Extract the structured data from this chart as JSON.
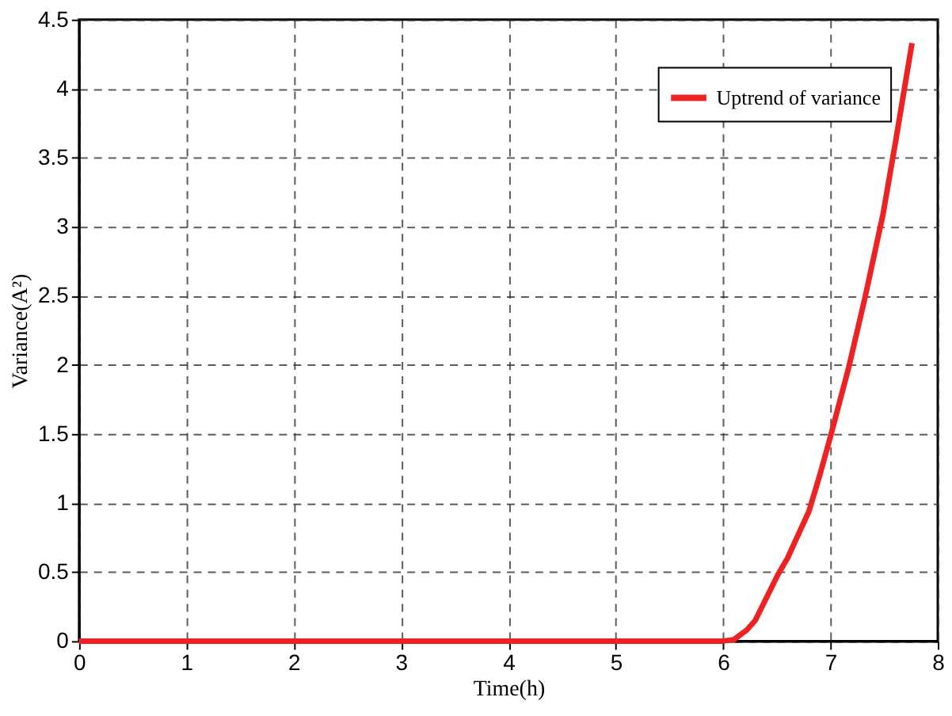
{
  "chart_data": {
    "type": "line",
    "xlabel": "Time(h)",
    "ylabel": "Variance(A²)",
    "xlim": [
      0,
      8
    ],
    "ylim": [
      0,
      4.5
    ],
    "xticks": [
      0,
      1,
      2,
      3,
      4,
      5,
      6,
      7,
      8
    ],
    "yticks": [
      0,
      0.5,
      1,
      1.5,
      2,
      2.5,
      3,
      3.5,
      4,
      4.5
    ],
    "grid": true,
    "legend": "top right",
    "line_style": "solid",
    "marker": "none",
    "series": [
      {
        "name": "Uptrend of variance",
        "color": "#ee2222",
        "x": [
          0,
          1,
          2,
          3,
          4,
          5,
          6,
          6.1,
          6.22,
          6.3,
          6.51,
          6.6,
          6.8,
          6.9,
          7.0,
          7.17,
          7.32,
          7.49,
          7.61,
          7.76
        ],
        "values": [
          0,
          0,
          0,
          0,
          0,
          0,
          0,
          0.01,
          0.08,
          0.15,
          0.48,
          0.6,
          0.94,
          1.2,
          1.48,
          1.98,
          2.48,
          3.09,
          3.63,
          4.33
        ]
      }
    ]
  }
}
